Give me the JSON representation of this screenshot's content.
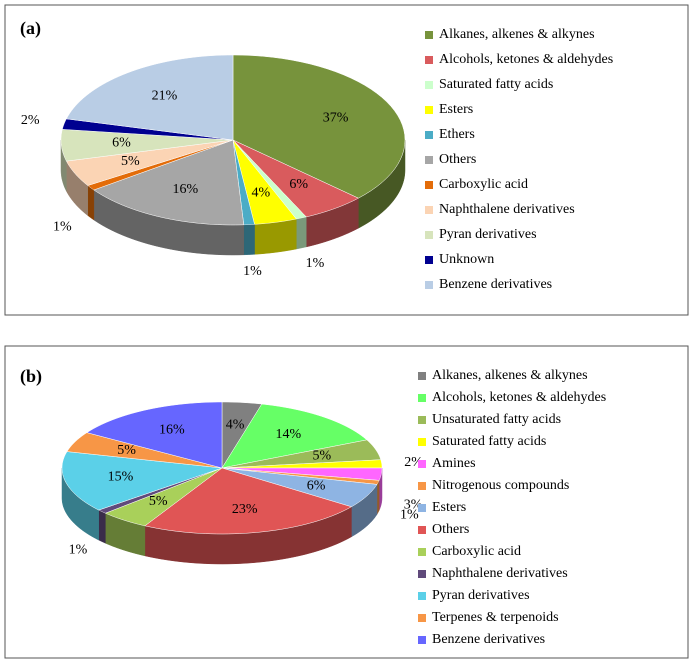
{
  "chart_data": [
    {
      "type": "pie",
      "panel_label": "(a)",
      "categories": [
        "Alkanes, alkenes & alkynes",
        "Alcohols, ketones & aldehydes",
        "Saturated fatty acids",
        "Esters",
        "Ethers",
        "Others",
        "Carboxylic acid",
        "Naphthalene derivatives",
        "Pyran derivatives",
        "Unknown",
        "Benzene derivatives"
      ],
      "values": [
        37,
        6,
        1,
        4,
        1,
        16,
        1,
        5,
        6,
        2,
        21
      ],
      "value_labels": [
        "37%",
        "6%",
        "1%",
        "4%",
        "1%",
        "16%",
        "1%",
        "5%",
        "6%",
        "2%",
        "21%"
      ],
      "colors": [
        "#77933c",
        "#d95b5d",
        "#ccffcc",
        "#ffff00",
        "#4bacc6",
        "#a6a6a6",
        "#e36c09",
        "#fbd4b4",
        "#d7e4bc",
        "#000090",
        "#b9cde5"
      ]
    },
    {
      "type": "pie",
      "panel_label": "(b)",
      "categories": [
        "Alkanes, alkenes & alkynes",
        "Alcohols, ketones & aldehydes",
        "Unsaturated fatty acids",
        "Saturated fatty acids",
        "Amines",
        "Nitrogenous compounds",
        "Esters",
        "Others",
        "Carboxylic acid",
        "Naphthalene derivatives",
        "Pyran derivatives",
        "Terpenes & terpenoids",
        "Benzene derivatives"
      ],
      "values": [
        4,
        14,
        5,
        2,
        3,
        1,
        6,
        23,
        5,
        1,
        15,
        5,
        16
      ],
      "value_labels": [
        "4%",
        "14%",
        "5%",
        "2%",
        "3%",
        "1%",
        "6%",
        "23%",
        "5%",
        "1%",
        "15%",
        "5%",
        "16%"
      ],
      "colors": [
        "#808080",
        "#66ff66",
        "#9bbb59",
        "#ffff00",
        "#ff66ff",
        "#f79646",
        "#8eb4e3",
        "#e05555",
        "#a9d05a",
        "#604a7b",
        "#5bd0e8",
        "#f79646",
        "#6666ff"
      ]
    }
  ]
}
